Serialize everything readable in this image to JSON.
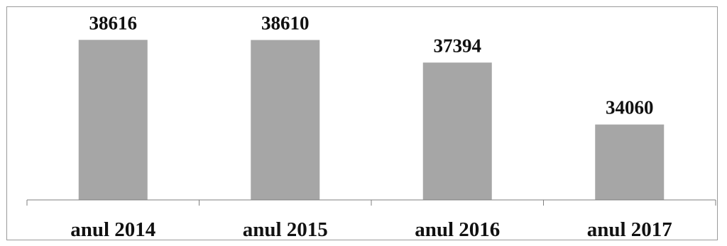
{
  "chart_data": {
    "type": "bar",
    "categories": [
      "anul 2014",
      "anul 2015",
      "anul 2016",
      "anul 2017"
    ],
    "values": [
      38616,
      38610,
      37394,
      34060
    ],
    "data_labels": [
      "38616",
      "38610",
      "37394",
      "34060"
    ],
    "title": "",
    "xlabel": "",
    "ylabel": "",
    "ylim": [
      30000,
      40000
    ],
    "grid": false,
    "legend": "none",
    "colors": {
      "bar": "#a6a6a6",
      "axis": "#7f7f7f",
      "text": "#111111"
    }
  }
}
